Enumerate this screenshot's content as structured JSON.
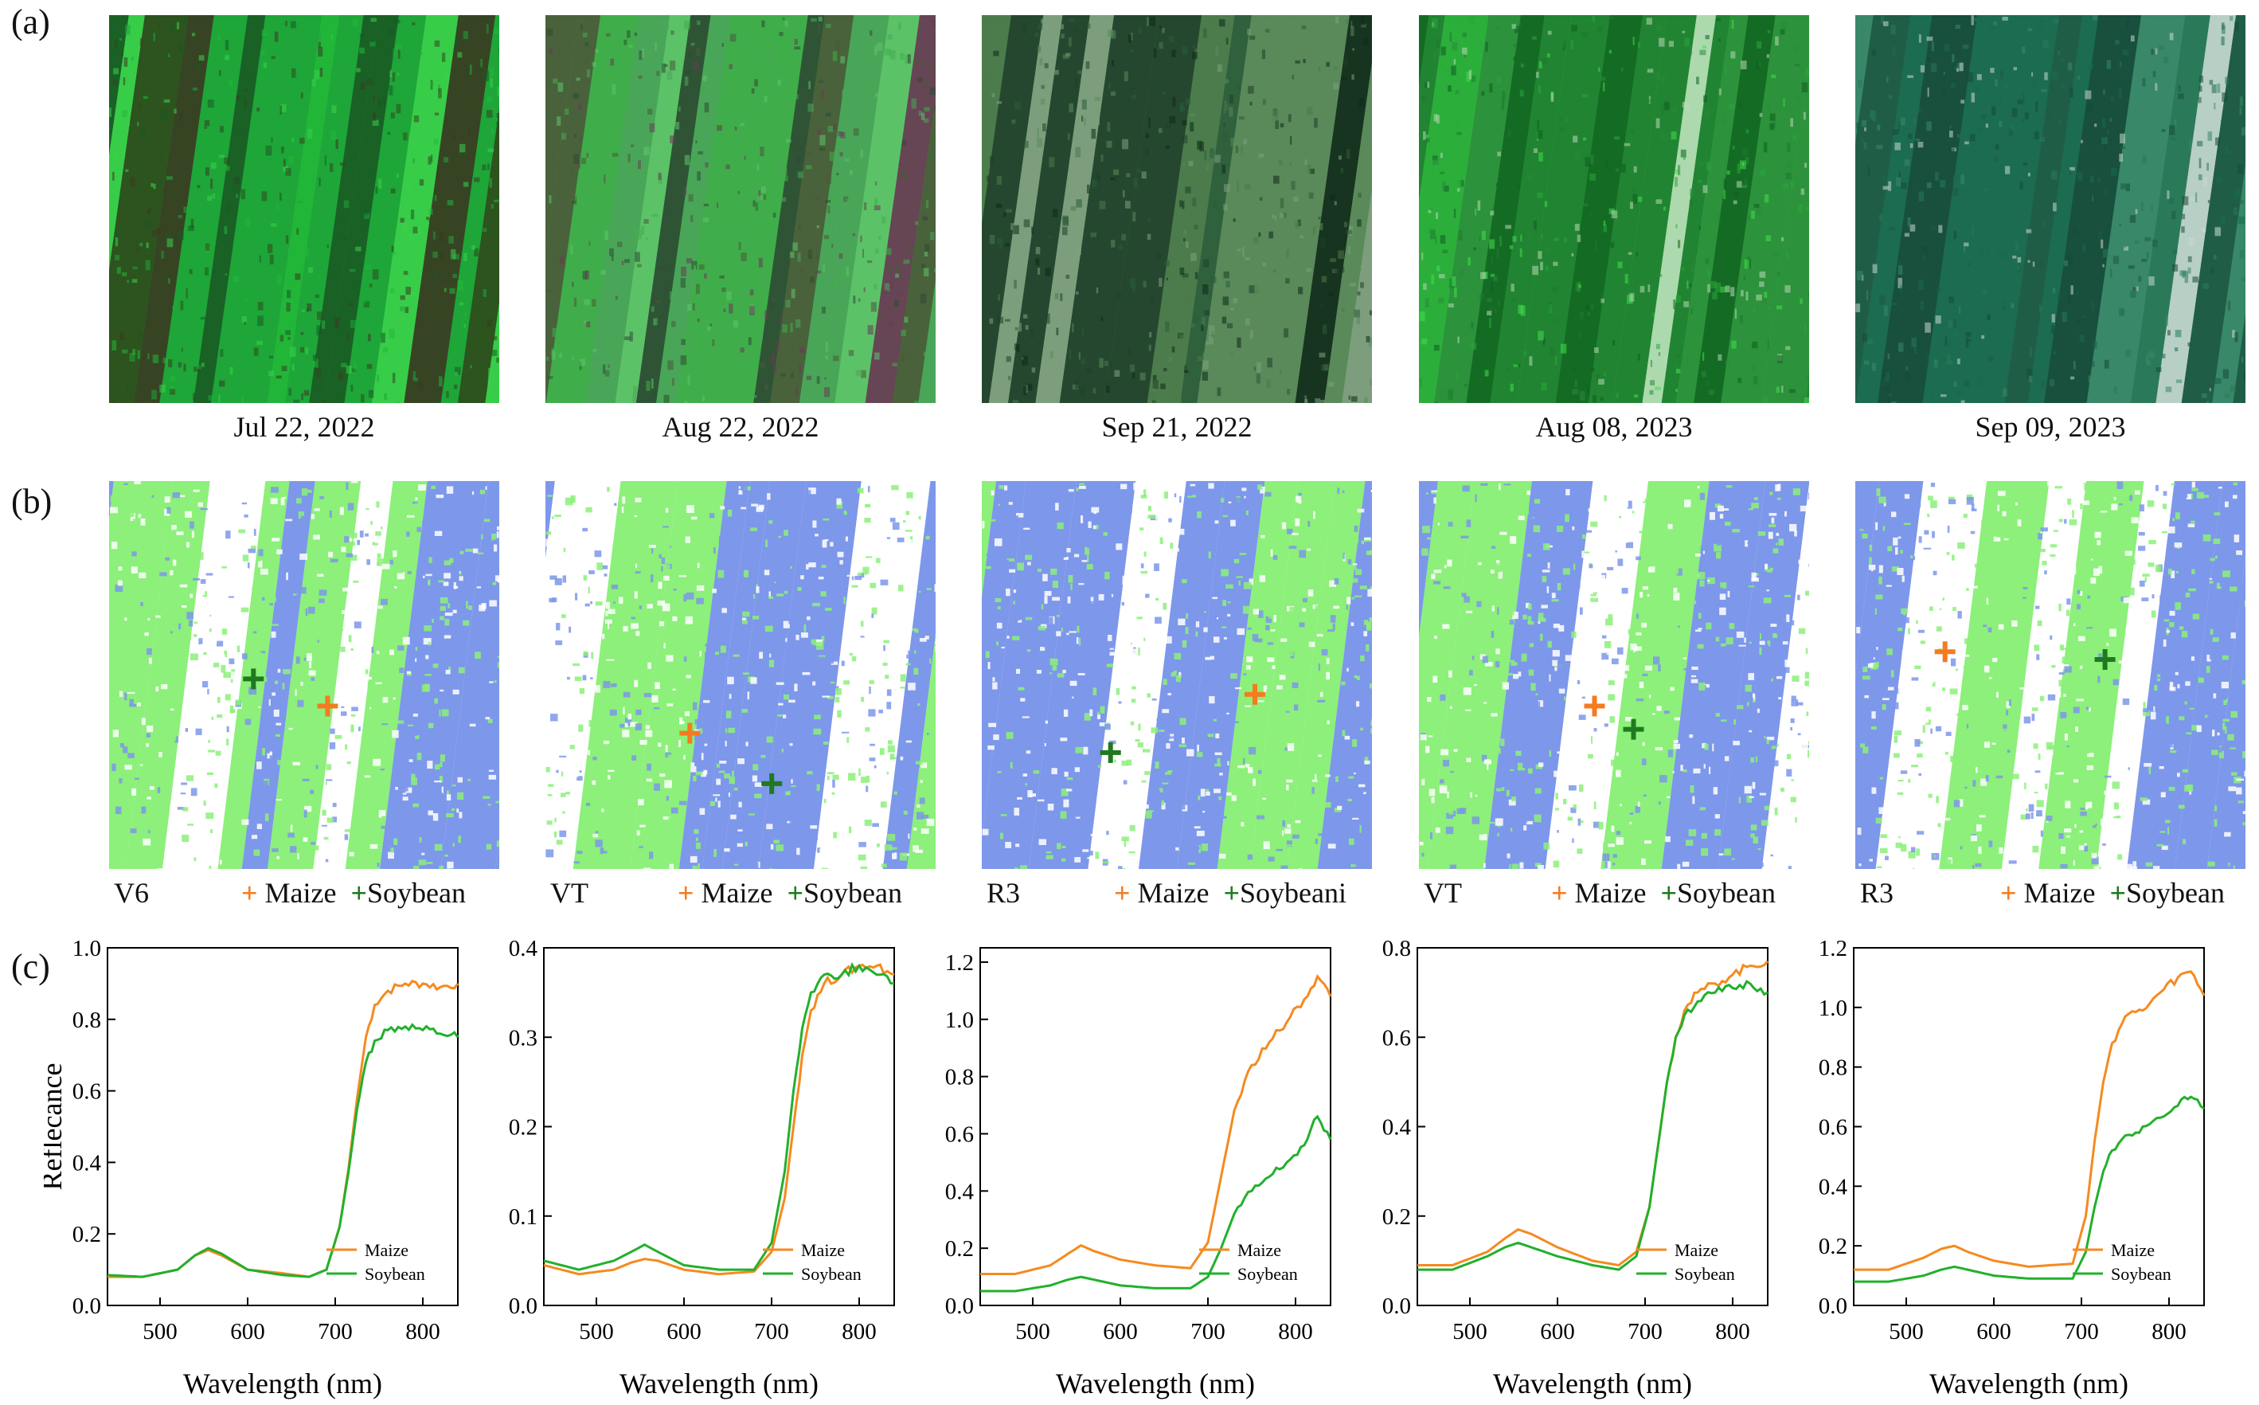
{
  "panel_letters": {
    "a": "(a)",
    "b": "(b)",
    "c": "(c)"
  },
  "colors": {
    "maize": "#f58a1f",
    "soybean": "#22b02c",
    "map_blue": "#7d97ea",
    "map_green": "#8cf07a",
    "maize_marker": "#f47b20",
    "soybean_marker": "#1f7a1f"
  },
  "dates": [
    "Jul 22, 2022",
    "Aug 22, 2022",
    "Sep 21, 2022",
    "Aug 08, 2023",
    "Sep 09, 2023"
  ],
  "class_maps": [
    {
      "stage": "V6",
      "maize_label": "Maize",
      "soy_label": "Soybean"
    },
    {
      "stage": "VT",
      "maize_label": "Maize",
      "soy_label": "Soybean"
    },
    {
      "stage": "R3",
      "maize_label": "Maize",
      "soy_label": "Soybeani"
    },
    {
      "stage": "VT",
      "maize_label": "Maize",
      "soy_label": "Soybean"
    },
    {
      "stage": "R3",
      "maize_label": "Maize",
      "soy_label": "Soybean"
    }
  ],
  "chart_data": [
    {
      "type": "line",
      "xlabel": "Wavelength (nm)",
      "ylabel": "Reflecance",
      "xlim": [
        440,
        840
      ],
      "ylim": [
        0.0,
        1.0
      ],
      "xticks": [
        "500",
        "600",
        "700",
        "800"
      ],
      "yticks": [
        "0.0",
        "0.2",
        "0.4",
        "0.6",
        "0.8",
        "1.0"
      ],
      "legend": "bottom-right",
      "x": [
        440,
        480,
        520,
        540,
        555,
        570,
        600,
        640,
        670,
        690,
        705,
        715,
        725,
        735,
        745,
        760,
        780,
        800,
        820,
        840
      ],
      "series": [
        {
          "name": "Maize",
          "values": [
            0.08,
            0.08,
            0.1,
            0.14,
            0.155,
            0.14,
            0.1,
            0.09,
            0.08,
            0.1,
            0.22,
            0.38,
            0.58,
            0.75,
            0.84,
            0.88,
            0.9,
            0.9,
            0.89,
            0.9
          ]
        },
        {
          "name": "Soybean",
          "values": [
            0.085,
            0.08,
            0.1,
            0.14,
            0.16,
            0.145,
            0.1,
            0.085,
            0.08,
            0.1,
            0.22,
            0.37,
            0.55,
            0.68,
            0.74,
            0.77,
            0.78,
            0.77,
            0.76,
            0.75
          ]
        }
      ]
    },
    {
      "type": "line",
      "xlabel": "Wavelength (nm)",
      "ylabel": "",
      "xlim": [
        440,
        840
      ],
      "ylim": [
        0.0,
        0.4
      ],
      "xticks": [
        "500",
        "600",
        "700",
        "800"
      ],
      "yticks": [
        "0.0",
        "0.1",
        "0.2",
        "0.3",
        "0.4"
      ],
      "legend": "bottom-right",
      "x": [
        440,
        480,
        520,
        540,
        555,
        570,
        600,
        640,
        680,
        700,
        715,
        725,
        735,
        745,
        760,
        780,
        800,
        820,
        840
      ],
      "series": [
        {
          "name": "Maize",
          "values": [
            0.045,
            0.035,
            0.04,
            0.048,
            0.052,
            0.05,
            0.04,
            0.035,
            0.038,
            0.06,
            0.12,
            0.2,
            0.28,
            0.33,
            0.36,
            0.37,
            0.38,
            0.38,
            0.37
          ]
        },
        {
          "name": "Soybean",
          "values": [
            0.05,
            0.04,
            0.05,
            0.06,
            0.068,
            0.06,
            0.045,
            0.04,
            0.04,
            0.07,
            0.15,
            0.24,
            0.31,
            0.35,
            0.37,
            0.37,
            0.38,
            0.37,
            0.36
          ]
        }
      ]
    },
    {
      "type": "line",
      "xlabel": "Wavelength (nm)",
      "ylabel": "",
      "xlim": [
        440,
        840
      ],
      "ylim": [
        0.0,
        1.25
      ],
      "xticks": [
        "500",
        "600",
        "700",
        "800"
      ],
      "yticks": [
        "0.0",
        "0.2",
        "0.4",
        "0.6",
        "0.8",
        "1.0",
        "1.2"
      ],
      "legend": "bottom-right",
      "x": [
        440,
        480,
        520,
        540,
        555,
        570,
        600,
        640,
        680,
        700,
        715,
        730,
        750,
        770,
        790,
        810,
        825,
        840
      ],
      "series": [
        {
          "name": "Maize",
          "values": [
            0.11,
            0.11,
            0.14,
            0.18,
            0.21,
            0.19,
            0.16,
            0.14,
            0.13,
            0.22,
            0.45,
            0.68,
            0.84,
            0.92,
            0.99,
            1.07,
            1.15,
            1.08
          ]
        },
        {
          "name": "Soybean",
          "values": [
            0.05,
            0.05,
            0.07,
            0.09,
            0.1,
            0.09,
            0.07,
            0.06,
            0.06,
            0.1,
            0.2,
            0.32,
            0.4,
            0.45,
            0.5,
            0.56,
            0.66,
            0.58
          ]
        }
      ]
    },
    {
      "type": "line",
      "xlabel": "Wavelength (nm)",
      "ylabel": "",
      "xlim": [
        440,
        840
      ],
      "ylim": [
        0.0,
        0.8
      ],
      "xticks": [
        "500",
        "600",
        "700",
        "800"
      ],
      "yticks": [
        "0.0",
        "0.2",
        "0.4",
        "0.6",
        "0.8"
      ],
      "legend": "bottom-right",
      "x": [
        440,
        480,
        520,
        540,
        555,
        570,
        600,
        640,
        670,
        690,
        705,
        715,
        725,
        735,
        745,
        760,
        780,
        800,
        820,
        840
      ],
      "series": [
        {
          "name": "Maize",
          "values": [
            0.09,
            0.09,
            0.12,
            0.15,
            0.17,
            0.16,
            0.13,
            0.1,
            0.09,
            0.12,
            0.22,
            0.36,
            0.5,
            0.6,
            0.66,
            0.7,
            0.72,
            0.74,
            0.76,
            0.77
          ]
        },
        {
          "name": "Soybean",
          "values": [
            0.08,
            0.08,
            0.11,
            0.13,
            0.14,
            0.13,
            0.11,
            0.09,
            0.08,
            0.11,
            0.22,
            0.36,
            0.5,
            0.6,
            0.65,
            0.68,
            0.7,
            0.71,
            0.72,
            0.7
          ]
        }
      ]
    },
    {
      "type": "line",
      "xlabel": "Wavelength (nm)",
      "ylabel": "",
      "xlim": [
        440,
        840
      ],
      "ylim": [
        0.0,
        1.2
      ],
      "xticks": [
        "500",
        "600",
        "700",
        "800"
      ],
      "yticks": [
        "0.0",
        "0.2",
        "0.4",
        "0.6",
        "0.8",
        "1.0",
        "1.2"
      ],
      "legend": "bottom-right",
      "x": [
        440,
        480,
        520,
        540,
        555,
        570,
        600,
        640,
        690,
        705,
        715,
        725,
        735,
        750,
        770,
        790,
        810,
        825,
        840
      ],
      "series": [
        {
          "name": "Maize",
          "values": [
            0.12,
            0.12,
            0.16,
            0.19,
            0.2,
            0.18,
            0.15,
            0.13,
            0.14,
            0.3,
            0.55,
            0.75,
            0.88,
            0.97,
            0.99,
            1.05,
            1.1,
            1.12,
            1.04
          ]
        },
        {
          "name": "Soybean",
          "values": [
            0.08,
            0.08,
            0.1,
            0.12,
            0.13,
            0.12,
            0.1,
            0.09,
            0.09,
            0.18,
            0.33,
            0.45,
            0.52,
            0.57,
            0.6,
            0.63,
            0.67,
            0.7,
            0.66
          ]
        }
      ]
    }
  ]
}
